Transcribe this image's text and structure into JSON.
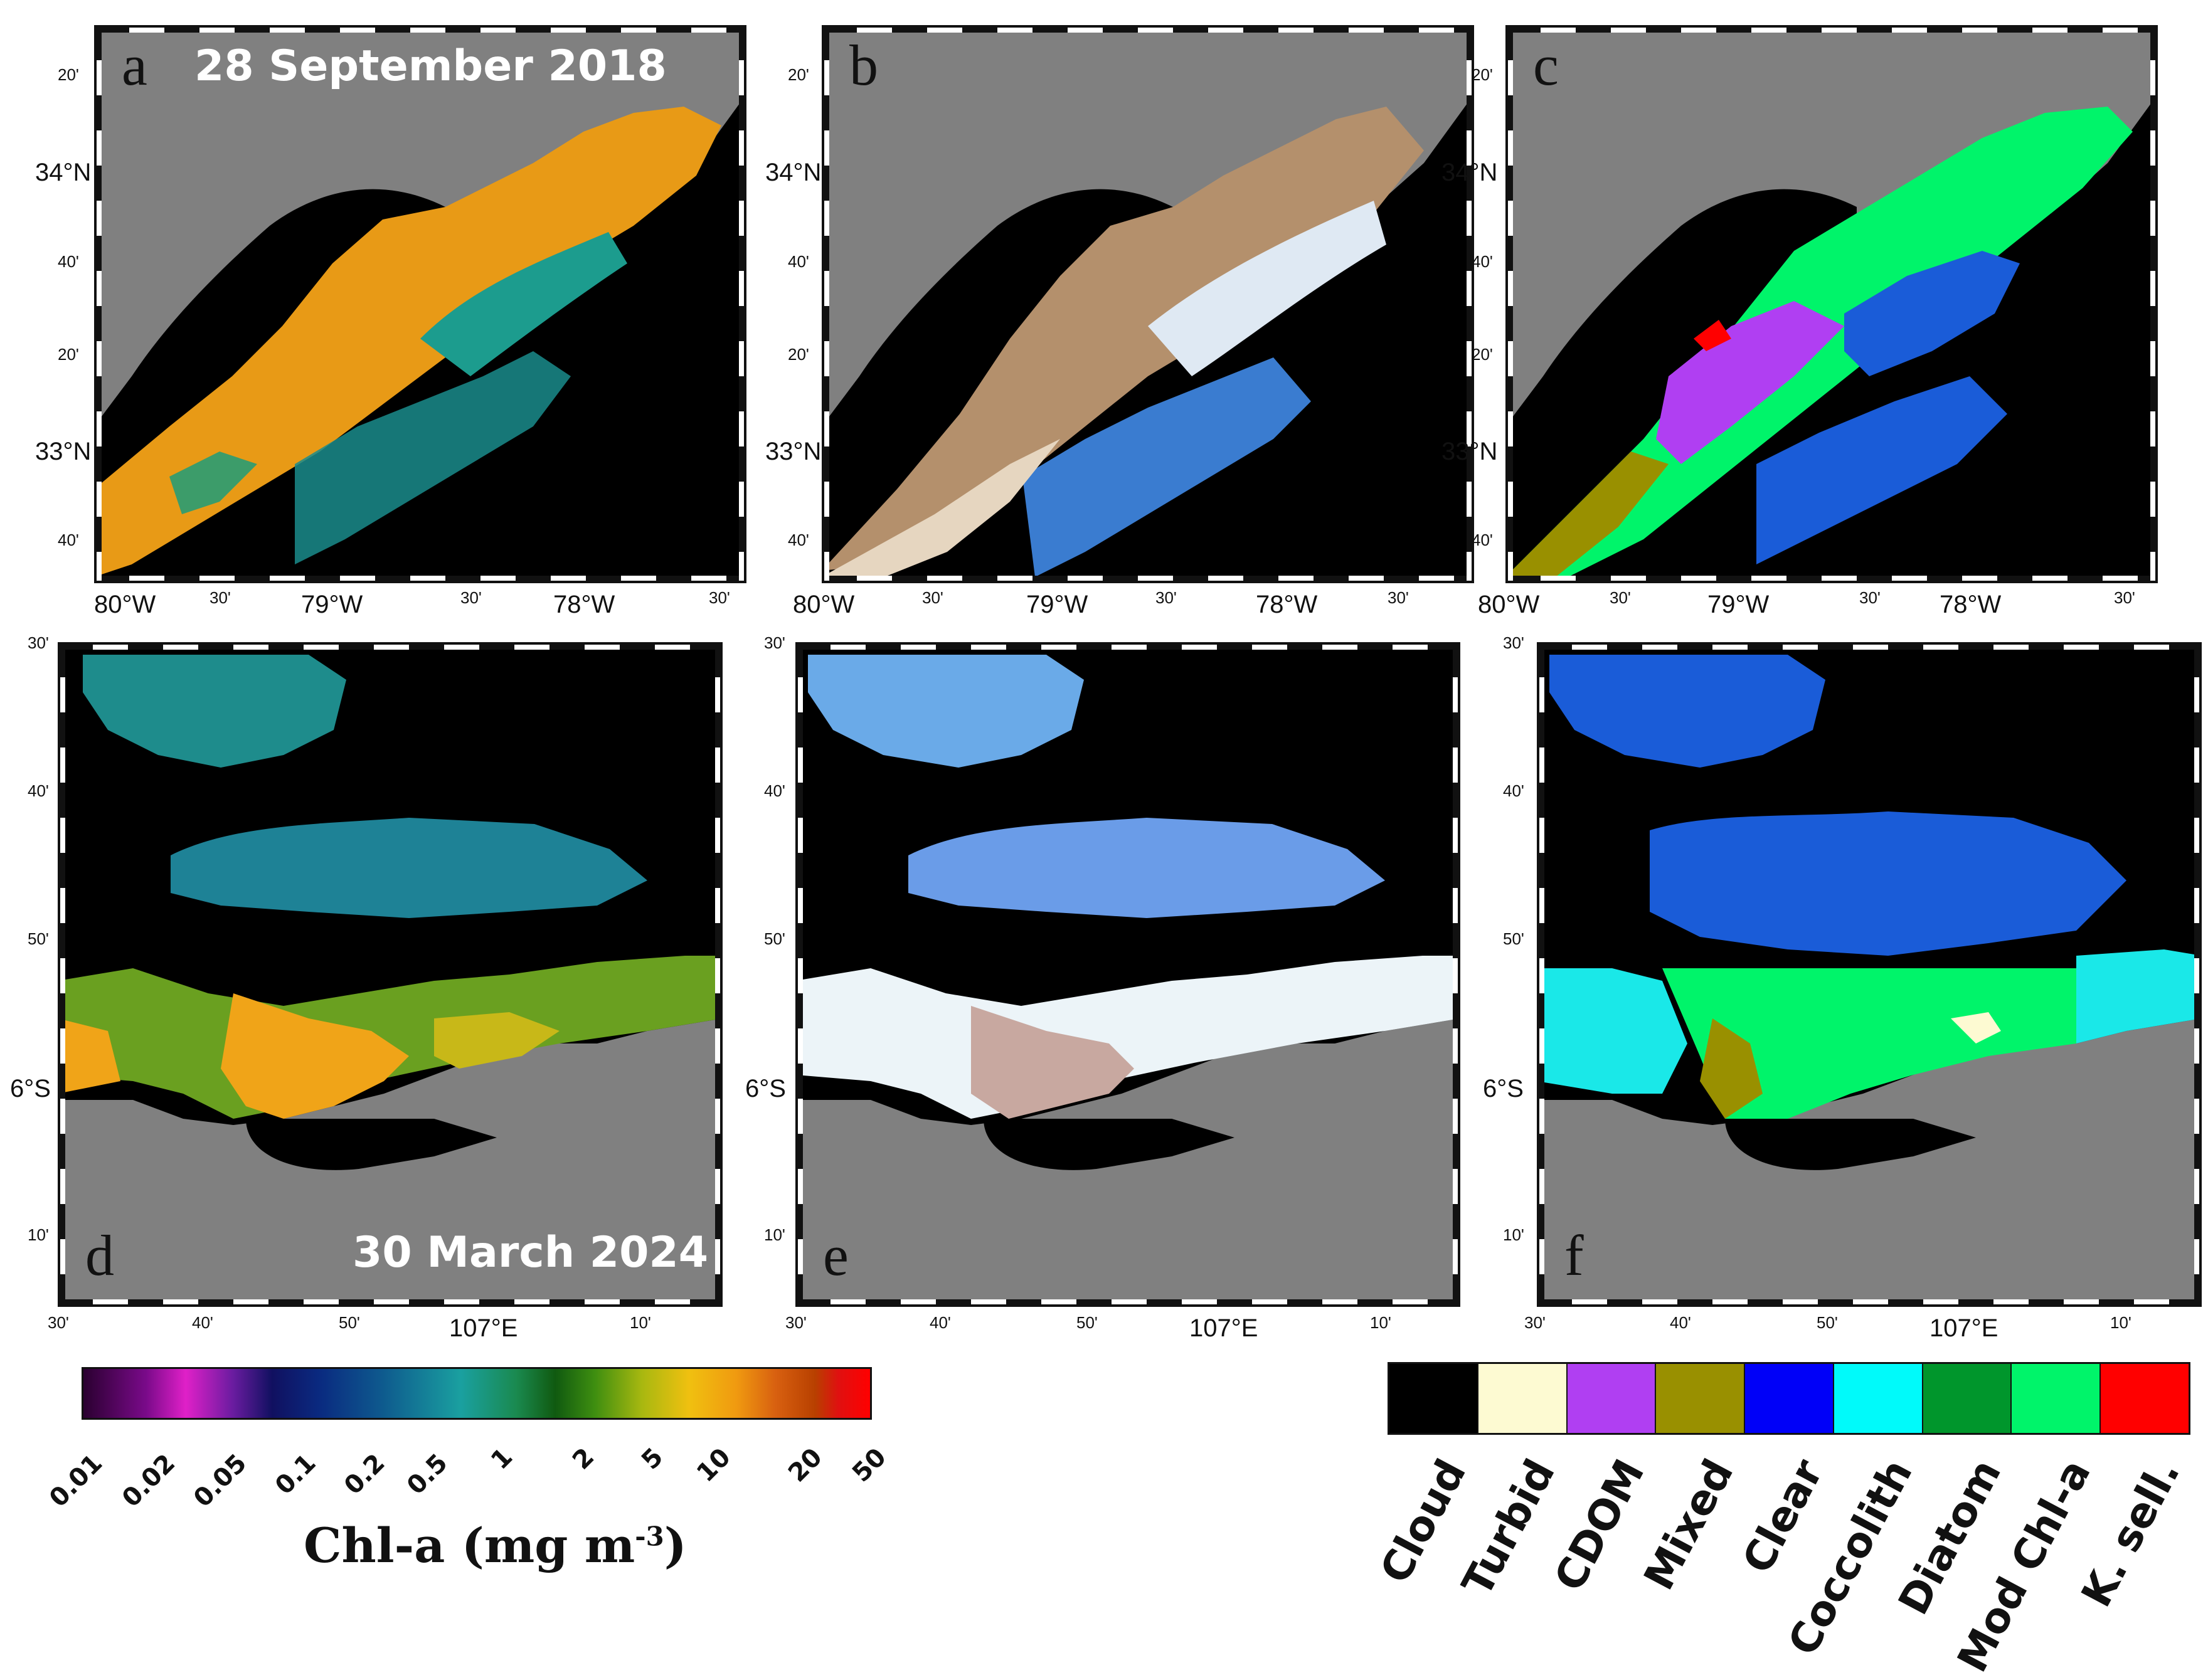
{
  "panels": {
    "a": {
      "letter": "a",
      "date": "28 September 2018"
    },
    "b": {
      "letter": "b"
    },
    "c": {
      "letter": "c"
    },
    "d": {
      "letter": "d",
      "date": "30 March 2024"
    },
    "e": {
      "letter": "e"
    },
    "f": {
      "letter": "f"
    }
  },
  "top_axes": {
    "lat_labels": [
      "20'",
      "34°N",
      "40'",
      "20'",
      "33°N",
      "40'"
    ],
    "lon_labels": [
      "80°W",
      "30'",
      "79°W",
      "30'",
      "78°W",
      "30'"
    ]
  },
  "bottom_axes": {
    "lat_labels": [
      "30'",
      "40'",
      "50'",
      "6°S",
      "10'"
    ],
    "lon_labels": [
      "30'",
      "40'",
      "50'",
      "107°E",
      "10'"
    ]
  },
  "colorbar": {
    "title": "Chl-a (mg m",
    "title_sup": "-3",
    "title_end": ")",
    "ticks": [
      "0.01",
      "0.02",
      "0.05",
      "0.1",
      "0.2",
      "0.5",
      "1",
      "2",
      "5",
      "10",
      "20",
      "50"
    ]
  },
  "class_legend": [
    {
      "label": "Cloud",
      "color": "#000000"
    },
    {
      "label": "Turbid",
      "color": "#fdfad2"
    },
    {
      "label": "CDOM",
      "color": "#b03ff2"
    },
    {
      "label": "Mixed",
      "color": "#999000"
    },
    {
      "label": "Clear",
      "color": "#0000f8"
    },
    {
      "label": "Coccolith",
      "color": "#00fafa"
    },
    {
      "label": "Diatom",
      "color": "#00962c"
    },
    {
      "label": "Mod Chl-a",
      "color": "#00f46a"
    },
    {
      "label": "K. sell.",
      "color": "#ff0000"
    }
  ]
}
